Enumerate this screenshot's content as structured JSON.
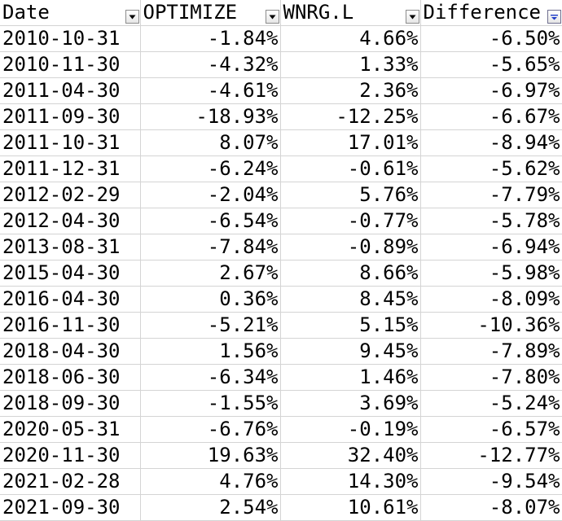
{
  "sheet": {
    "headers": {
      "date": "Date",
      "optimize": "OPTIMIZE",
      "wnrg": "WNRG.L",
      "difference": "Difference"
    },
    "filter_icon_color": "#000000",
    "sorted_filter_icon_color": "#1f3cc8",
    "rows": [
      {
        "date": "2010-10-31",
        "optimize": "-1.84%",
        "wnrg": "4.66%",
        "difference": "-6.50%"
      },
      {
        "date": "2010-11-30",
        "optimize": "-4.32%",
        "wnrg": "1.33%",
        "difference": "-5.65%"
      },
      {
        "date": "2011-04-30",
        "optimize": "-4.61%",
        "wnrg": "2.36%",
        "difference": "-6.97%"
      },
      {
        "date": "2011-09-30",
        "optimize": "-18.93%",
        "wnrg": "-12.25%",
        "difference": "-6.67%"
      },
      {
        "date": "2011-10-31",
        "optimize": "8.07%",
        "wnrg": "17.01%",
        "difference": "-8.94%"
      },
      {
        "date": "2011-12-31",
        "optimize": "-6.24%",
        "wnrg": "-0.61%",
        "difference": "-5.62%"
      },
      {
        "date": "2012-02-29",
        "optimize": "-2.04%",
        "wnrg": "5.76%",
        "difference": "-7.79%"
      },
      {
        "date": "2012-04-30",
        "optimize": "-6.54%",
        "wnrg": "-0.77%",
        "difference": "-5.78%"
      },
      {
        "date": "2013-08-31",
        "optimize": "-7.84%",
        "wnrg": "-0.89%",
        "difference": "-6.94%"
      },
      {
        "date": "2015-04-30",
        "optimize": "2.67%",
        "wnrg": "8.66%",
        "difference": "-5.98%"
      },
      {
        "date": "2016-04-30",
        "optimize": "0.36%",
        "wnrg": "8.45%",
        "difference": "-8.09%"
      },
      {
        "date": "2016-11-30",
        "optimize": "-5.21%",
        "wnrg": "5.15%",
        "difference": "-10.36%"
      },
      {
        "date": "2018-04-30",
        "optimize": "1.56%",
        "wnrg": "9.45%",
        "difference": "-7.89%"
      },
      {
        "date": "2018-06-30",
        "optimize": "-6.34%",
        "wnrg": "1.46%",
        "difference": "-7.80%"
      },
      {
        "date": "2018-09-30",
        "optimize": "-1.55%",
        "wnrg": "3.69%",
        "difference": "-5.24%"
      },
      {
        "date": "2020-05-31",
        "optimize": "-6.76%",
        "wnrg": "-0.19%",
        "difference": "-6.57%"
      },
      {
        "date": "2020-11-30",
        "optimize": "19.63%",
        "wnrg": "32.40%",
        "difference": "-12.77%"
      },
      {
        "date": "2021-02-28",
        "optimize": "4.76%",
        "wnrg": "14.30%",
        "difference": "-9.54%"
      },
      {
        "date": "2021-09-30",
        "optimize": "2.54%",
        "wnrg": "10.61%",
        "difference": "-8.07%"
      }
    ]
  }
}
